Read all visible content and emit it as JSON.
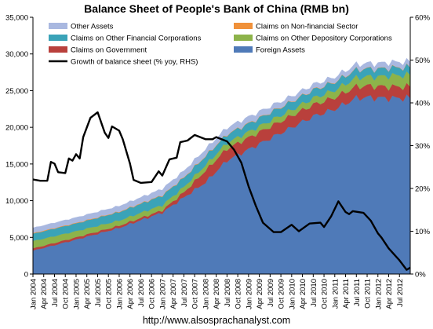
{
  "chart_data": {
    "type": "area",
    "title": "Balance Sheet of People's Bank of China (RMB bn)",
    "footer": "http://www.alsosprachanalyst.com",
    "x_labels": [
      "Jan 2004",
      "Apr 2004",
      "Jul 2004",
      "Oct 2004",
      "Jan 2005",
      "Apr 2005",
      "Jul 2005",
      "Oct 2005",
      "Jan 2006",
      "Apr 2006",
      "Jul 2006",
      "Oct 2006",
      "Jan 2007",
      "Apr 2007",
      "Jul 2007",
      "Oct 2007",
      "Jan 2008",
      "Apr 2008",
      "Jul 2008",
      "Oct 2008",
      "Jan 2009",
      "Apr 2009",
      "Jul 2009",
      "Oct 2009",
      "Jan 2010",
      "Apr 2010",
      "Jul 2010",
      "Oct 2010",
      "Jan 2011",
      "Apr 2011",
      "Jul 2011",
      "Oct 2011",
      "Jan 2012",
      "Apr 2012",
      "Jul 2012"
    ],
    "x_start": "2004-01",
    "x_end": "2012-10",
    "y_left": {
      "min": 0,
      "max": 35000,
      "ticks": [
        "0",
        "5,000",
        "10,000",
        "15,000",
        "20,000",
        "25,000",
        "30,000",
        "35,000"
      ]
    },
    "y_right": {
      "min": 0,
      "max": 60,
      "ticks": [
        "0%",
        "10%",
        "20%",
        "30%",
        "40%",
        "50%",
        "60%"
      ]
    },
    "legend": [
      {
        "name": "Other Assets",
        "color": "#a9b8e0"
      },
      {
        "name": "Claims on Non-financial Sector",
        "color": "#f0913a"
      },
      {
        "name": "Claims on Other Financial Corporations",
        "color": "#3aa3b8"
      },
      {
        "name": "Claims on Other Depository Corporations",
        "color": "#8db34a"
      },
      {
        "name": "Claims on Government",
        "color": "#b9403c"
      },
      {
        "name": "Foreign Assets",
        "color": "#4f7ab8"
      },
      {
        "name": "Growth of balance sheet (% yoy, RHS)",
        "color": "#000000"
      }
    ],
    "stack_series": [
      {
        "name": "Foreign Assets",
        "color": "#4f7ab8",
        "points": [
          [
            "2004-01",
            3200
          ],
          [
            "2005-01",
            4700
          ],
          [
            "2006-01",
            6300
          ],
          [
            "2007-01",
            8400
          ],
          [
            "2008-01",
            12500
          ],
          [
            "2008-07",
            15500
          ],
          [
            "2009-01",
            17000
          ],
          [
            "2010-01",
            20000
          ],
          [
            "2010-07",
            21500
          ],
          [
            "2011-01",
            22500
          ],
          [
            "2011-07",
            24000
          ],
          [
            "2011-10",
            24100
          ],
          [
            "2012-03",
            24000
          ],
          [
            "2012-10",
            24000
          ]
        ]
      },
      {
        "name": "Claims on Government",
        "color": "#b9403c",
        "points": [
          [
            "2004-01",
            300
          ],
          [
            "2007-01",
            300
          ],
          [
            "2007-07",
            700
          ],
          [
            "2008-01",
            1600
          ],
          [
            "2008-07",
            1600
          ],
          [
            "2009-01",
            1600
          ],
          [
            "2012-10",
            1550
          ]
        ]
      },
      {
        "name": "Claims on Other Depository Corporations",
        "color": "#8db34a",
        "points": [
          [
            "2004-01",
            1000
          ],
          [
            "2006-01",
            700
          ],
          [
            "2007-01",
            700
          ],
          [
            "2008-01",
            750
          ],
          [
            "2009-01",
            800
          ],
          [
            "2010-01",
            800
          ],
          [
            "2011-01",
            1000
          ],
          [
            "2011-07",
            1200
          ],
          [
            "2012-01",
            1300
          ],
          [
            "2012-04",
            1500
          ],
          [
            "2012-10",
            1600
          ]
        ]
      },
      {
        "name": "Claims on Other Financial Corporations",
        "color": "#3aa3b8",
        "points": [
          [
            "2004-01",
            1000
          ],
          [
            "2005-01",
            1050
          ],
          [
            "2006-01",
            1150
          ],
          [
            "2007-01",
            1300
          ],
          [
            "2008-01",
            1200
          ],
          [
            "2008-07",
            1150
          ],
          [
            "2009-01",
            1100
          ],
          [
            "2010-01",
            1100
          ],
          [
            "2011-01",
            1100
          ],
          [
            "2012-01",
            1050
          ],
          [
            "2012-10",
            1050
          ]
        ]
      },
      {
        "name": "Claims on Non-financial Sector",
        "color": "#f0913a",
        "points": [
          [
            "2004-01",
            80
          ],
          [
            "2012-10",
            40
          ]
        ]
      },
      {
        "name": "Other Assets",
        "color": "#a9b8e0",
        "points": [
          [
            "2004-01",
            700
          ],
          [
            "2006-01",
            750
          ],
          [
            "2007-01",
            850
          ],
          [
            "2008-01",
            900
          ],
          [
            "2009-01",
            850
          ],
          [
            "2010-01",
            700
          ],
          [
            "2011-01",
            650
          ],
          [
            "2012-01",
            700
          ],
          [
            "2012-10",
            700
          ]
        ]
      }
    ],
    "growth_series": {
      "name": "Growth of balance sheet (% yoy, RHS)",
      "color": "#000000",
      "points": [
        [
          "2004-01",
          22.1
        ],
        [
          "2004-03",
          21.8
        ],
        [
          "2004-05",
          21.8
        ],
        [
          "2004-06",
          26.2
        ],
        [
          "2004-07",
          25.8
        ],
        [
          "2004-08",
          23.8
        ],
        [
          "2004-10",
          23.6
        ],
        [
          "2004-11",
          27.0
        ],
        [
          "2004-12",
          26.5
        ],
        [
          "2005-01",
          28.0
        ],
        [
          "2005-02",
          27.0
        ],
        [
          "2005-03",
          32.0
        ],
        [
          "2005-05",
          36.5
        ],
        [
          "2005-07",
          37.8
        ],
        [
          "2005-09",
          33.0
        ],
        [
          "2005-10",
          31.8
        ],
        [
          "2005-11",
          34.5
        ],
        [
          "2006-01",
          33.5
        ],
        [
          "2006-02",
          31.5
        ],
        [
          "2006-04",
          25.8
        ],
        [
          "2006-05",
          22.0
        ],
        [
          "2006-07",
          21.3
        ],
        [
          "2006-10",
          21.5
        ],
        [
          "2006-12",
          24.0
        ],
        [
          "2007-01",
          23.0
        ],
        [
          "2007-03",
          26.8
        ],
        [
          "2007-05",
          27.2
        ],
        [
          "2007-06",
          30.8
        ],
        [
          "2007-08",
          31.2
        ],
        [
          "2007-10",
          32.5
        ],
        [
          "2008-01",
          31.5
        ],
        [
          "2008-03",
          31.5
        ],
        [
          "2008-04",
          32.0
        ],
        [
          "2008-07",
          31.0
        ],
        [
          "2008-09",
          29.0
        ],
        [
          "2008-11",
          26.0
        ],
        [
          "2009-01",
          20.5
        ],
        [
          "2009-03",
          16.0
        ],
        [
          "2009-05",
          12.0
        ],
        [
          "2009-08",
          9.8
        ],
        [
          "2009-10",
          9.8
        ],
        [
          "2010-01",
          11.5
        ],
        [
          "2010-03",
          10.0
        ],
        [
          "2010-06",
          11.8
        ],
        [
          "2010-09",
          12.0
        ],
        [
          "2010-10",
          11.0
        ],
        [
          "2010-12",
          13.5
        ],
        [
          "2011-02",
          17.0
        ],
        [
          "2011-04",
          14.5
        ],
        [
          "2011-05",
          14.0
        ],
        [
          "2011-06",
          14.7
        ],
        [
          "2011-09",
          14.3
        ],
        [
          "2011-11",
          12.5
        ],
        [
          "2012-01",
          9.5
        ],
        [
          "2012-02",
          8.5
        ],
        [
          "2012-04",
          6.0
        ],
        [
          "2012-07",
          3.2
        ],
        [
          "2012-09",
          1.0
        ],
        [
          "2012-10",
          1.5
        ]
      ]
    }
  }
}
